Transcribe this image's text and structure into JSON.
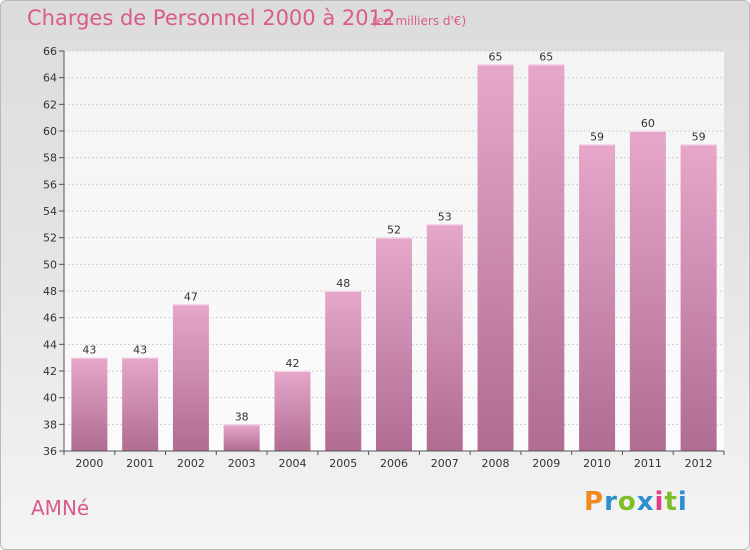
{
  "header": {
    "title": "Charges de Personnel 2000 à 2012",
    "subtitle": "(en milliers d'€)"
  },
  "footer": {
    "commune": "AMNé",
    "logo": [
      "P",
      "r",
      "o",
      "x",
      "i",
      "t",
      "i"
    ]
  },
  "colors": {
    "title": "#d95b8c",
    "bar_top": "#e6a7cb",
    "bar_bottom": "#b06c93",
    "logo": [
      "#f08a1c",
      "#2e8fd0",
      "#7fbf26",
      "#2e8fd0",
      "#e43b8a",
      "#7fbf26",
      "#2e8fd0"
    ]
  },
  "chart_data": {
    "type": "bar",
    "title": "Charges de Personnel 2000 à 2012",
    "subtitle": "(en milliers d'€)",
    "categories": [
      "2000",
      "2001",
      "2002",
      "2003",
      "2004",
      "2005",
      "2006",
      "2007",
      "2008",
      "2009",
      "2010",
      "2011",
      "2012"
    ],
    "values": [
      43,
      43,
      47,
      38,
      42,
      48,
      52,
      53,
      65,
      65,
      59,
      60,
      59
    ],
    "ylim": [
      36,
      66
    ],
    "yticks": [
      36,
      38,
      40,
      42,
      44,
      46,
      48,
      50,
      52,
      54,
      56,
      58,
      60,
      62,
      64,
      66
    ],
    "grid": true
  }
}
